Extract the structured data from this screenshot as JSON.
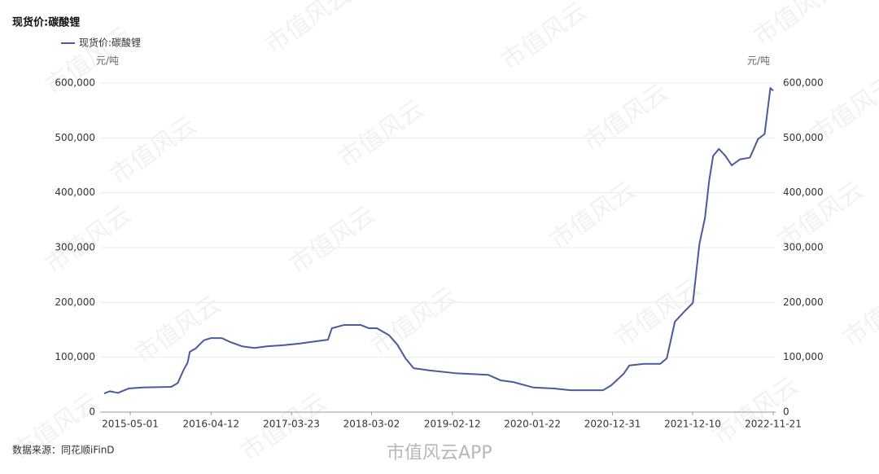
{
  "chart_data": {
    "type": "line",
    "title": "现货价:碳酸锂",
    "y_unit": "元/吨",
    "y2_unit": "元/吨",
    "source": "数据来源：同花顺iFinD",
    "watermark": "市值风云",
    "app_mark": "市值风云APP",
    "x": [
      "2015-01-09",
      "2015-02-02",
      "2015-03-09",
      "2015-03-26",
      "2015-04-24",
      "2015-06-23",
      "2015-10-24",
      "2015-11-21",
      "2015-12-15",
      "2016-01-02",
      "2016-01-12",
      "2016-02-06",
      "2016-03-12",
      "2016-04-12",
      "2016-05-28",
      "2016-07-02",
      "2016-08-23",
      "2016-10-15",
      "2016-12-07",
      "2017-02-15",
      "2017-04-26",
      "2017-07-05",
      "2017-08-27",
      "2017-09-13",
      "2017-11-05",
      "2018-01-14",
      "2018-02-18",
      "2018-03-25",
      "2018-05-17",
      "2018-06-21",
      "2018-07-26",
      "2018-08-30",
      "2018-11-08",
      "2019-02-24",
      "2019-07-16",
      "2019-09-07",
      "2019-10-30",
      "2020-01-25",
      "2020-04-23",
      "2020-07-03",
      "2020-11-21",
      "2020-12-26",
      "2021-02-17",
      "2021-03-13",
      "2021-05-15",
      "2021-07-24",
      "2021-08-21",
      "2021-09-25",
      "2021-11-06",
      "2021-12-11",
      "2022-01-08",
      "2022-02-01",
      "2022-02-19",
      "2022-03-08",
      "2022-04-02",
      "2022-04-30",
      "2022-05-27",
      "2022-07-02",
      "2022-08-13",
      "2022-09-17",
      "2022-10-15",
      "2022-11-09",
      "2022-11-21"
    ],
    "series": [
      {
        "name": "现货价:碳酸锂",
        "color": "#4b5a9c",
        "values": [
          34000,
          38000,
          35000,
          38000,
          43000,
          45000,
          46000,
          53000,
          76000,
          90000,
          110000,
          116000,
          131000,
          135000,
          135000,
          128000,
          120000,
          117000,
          120000,
          122000,
          125000,
          129000,
          132000,
          153000,
          159000,
          159000,
          153000,
          153000,
          140000,
          123000,
          98000,
          80000,
          76000,
          71000,
          68000,
          58000,
          55000,
          45000,
          43000,
          40000,
          40000,
          49000,
          70000,
          85000,
          88000,
          88000,
          98000,
          165000,
          184000,
          199000,
          306000,
          354000,
          422000,
          467000,
          480000,
          467000,
          450000,
          461000,
          464000,
          498000,
          507000,
          591000,
          586000
        ]
      }
    ],
    "xlim": [
      "2015-01-09",
      "2022-11-21"
    ],
    "xticks": [
      "2015-05-01",
      "2016-04-12",
      "2017-03-23",
      "2018-03-02",
      "2019-02-12",
      "2020-01-22",
      "2020-12-31",
      "2021-12-10",
      "2022-11-21"
    ],
    "ylim": [
      0,
      600000
    ],
    "yticks": [
      0,
      {
        "value": 100000,
        "label": "100,000"
      },
      {
        "value": 200000,
        "label": "200,000"
      },
      {
        "value": 300000,
        "label": "300,000"
      },
      {
        "value": 400000,
        "label": "400,000"
      },
      {
        "value": 500000,
        "label": "500,000"
      },
      {
        "value": 600000,
        "label": "600,000"
      }
    ],
    "y2lim": [
      0,
      600000
    ],
    "y2ticks": [
      0,
      {
        "value": 100000,
        "label": "100,000"
      },
      {
        "value": 200000,
        "label": "200,000"
      },
      {
        "value": 300000,
        "label": "300,000"
      },
      {
        "value": 400000,
        "label": "400,000"
      },
      {
        "value": 500000,
        "label": "500,000"
      },
      {
        "value": 600000,
        "label": "600,000"
      }
    ],
    "grid": true
  }
}
